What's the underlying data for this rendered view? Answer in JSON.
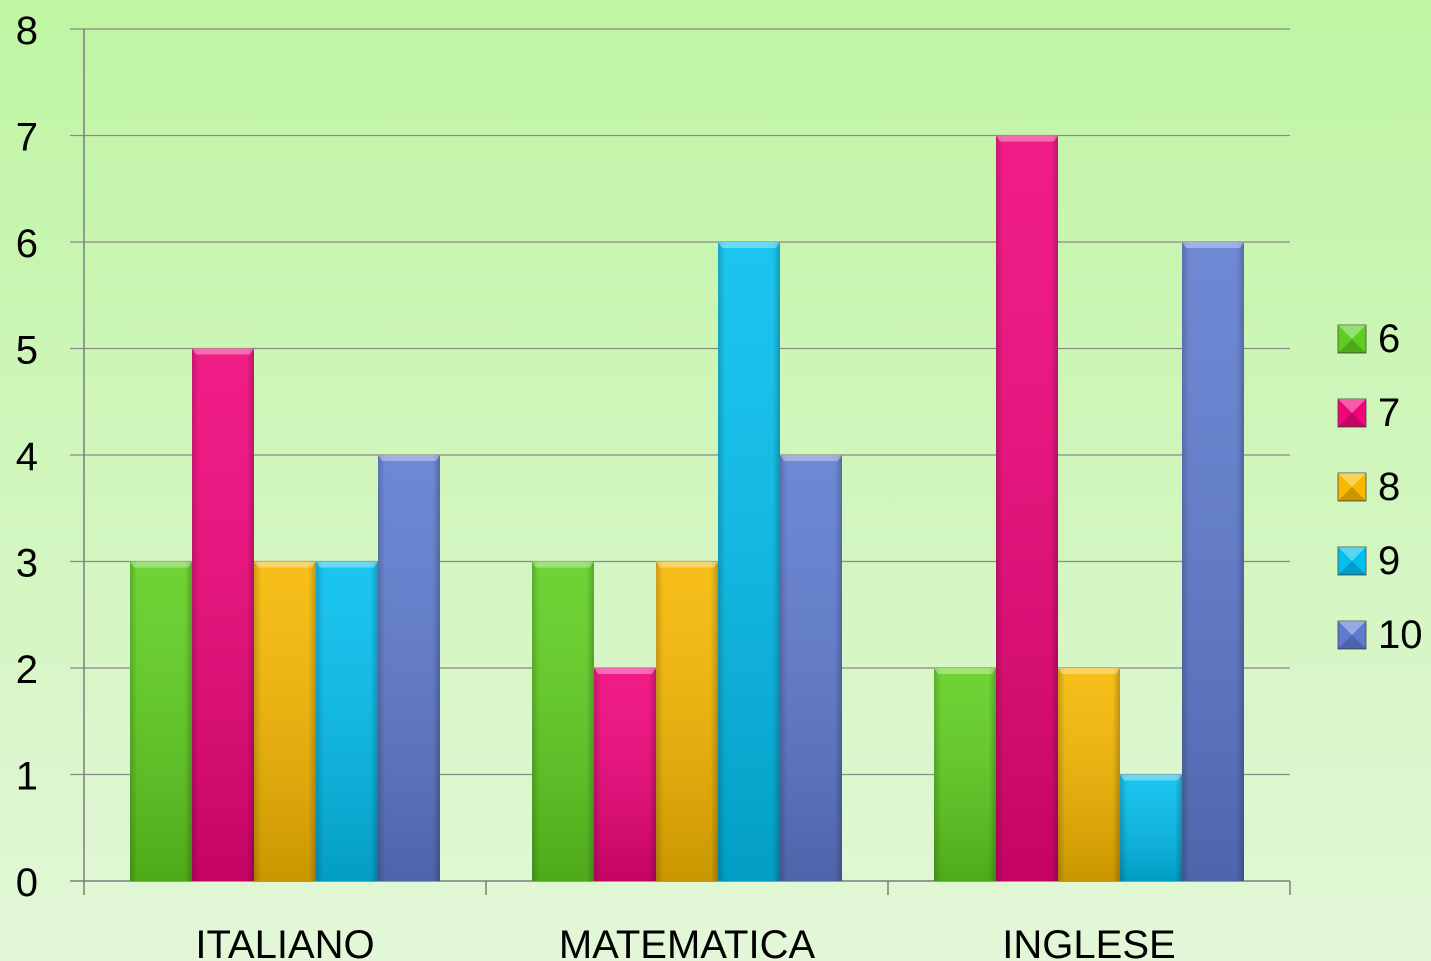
{
  "chart_data": {
    "type": "bar",
    "categories": [
      "ITALIANO",
      "MATEMATICA",
      "INGLESE"
    ],
    "series": [
      {
        "name": "6",
        "color": "#5fcf1f",
        "values": [
          3,
          3,
          2
        ]
      },
      {
        "name": "7",
        "color": "#f0047a",
        "values": [
          5,
          2,
          7
        ]
      },
      {
        "name": "8",
        "color": "#f7b800",
        "values": [
          3,
          3,
          2
        ]
      },
      {
        "name": "9",
        "color": "#02bfee",
        "values": [
          3,
          6,
          1
        ]
      },
      {
        "name": "10",
        "color": "#5e7bd0",
        "values": [
          4,
          4,
          6
        ]
      }
    ],
    "ylim": [
      0,
      8
    ],
    "yticks": [
      0,
      1,
      2,
      3,
      4,
      5,
      6,
      7,
      8
    ],
    "title": "",
    "xlabel": "",
    "ylabel": "",
    "grid": true,
    "legend_position": "right"
  }
}
